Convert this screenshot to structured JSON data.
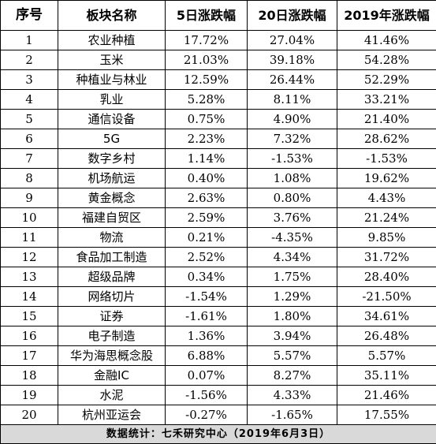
{
  "table": {
    "headers": [
      "序号",
      "板块名称",
      "5日涨跌幅",
      "20日涨跌幅",
      "2019年涨跌幅"
    ],
    "rows": [
      {
        "index": "1",
        "name": "农业种植",
        "d5": "17.72%",
        "d20": "27.04%",
        "y2019": "41.46%"
      },
      {
        "index": "2",
        "name": "玉米",
        "d5": "21.03%",
        "d20": "39.18%",
        "y2019": "54.28%"
      },
      {
        "index": "3",
        "name": "种植业与林业",
        "d5": "12.59%",
        "d20": "26.44%",
        "y2019": "52.29%"
      },
      {
        "index": "4",
        "name": "乳业",
        "d5": "5.28%",
        "d20": "8.11%",
        "y2019": "33.21%"
      },
      {
        "index": "5",
        "name": "通信设备",
        "d5": "0.75%",
        "d20": "4.90%",
        "y2019": "21.40%"
      },
      {
        "index": "6",
        "name": "5G",
        "d5": "2.23%",
        "d20": "7.32%",
        "y2019": "28.62%"
      },
      {
        "index": "7",
        "name": "数字乡村",
        "d5": "1.14%",
        "d20": "-1.53%",
        "y2019": "-1.53%"
      },
      {
        "index": "8",
        "name": "机场航运",
        "d5": "0.40%",
        "d20": "1.08%",
        "y2019": "19.62%"
      },
      {
        "index": "9",
        "name": "黄金概念",
        "d5": "2.63%",
        "d20": "0.80%",
        "y2019": "4.43%"
      },
      {
        "index": "10",
        "name": "福建自贸区",
        "d5": "2.59%",
        "d20": "3.76%",
        "y2019": "21.24%"
      },
      {
        "index": "11",
        "name": "物流",
        "d5": "0.21%",
        "d20": "-4.35%",
        "y2019": "9.85%"
      },
      {
        "index": "12",
        "name": "食品加工制造",
        "d5": "2.52%",
        "d20": "4.34%",
        "y2019": "31.72%"
      },
      {
        "index": "13",
        "name": "超级品牌",
        "d5": "0.34%",
        "d20": "1.75%",
        "y2019": "28.40%"
      },
      {
        "index": "14",
        "name": "网络切片",
        "d5": "-1.54%",
        "d20": "1.29%",
        "y2019": "-21.50%"
      },
      {
        "index": "15",
        "name": "证券",
        "d5": "-1.61%",
        "d20": "1.80%",
        "y2019": "34.61%"
      },
      {
        "index": "16",
        "name": "电子制造",
        "d5": "1.36%",
        "d20": "3.94%",
        "y2019": "26.48%"
      },
      {
        "index": "17",
        "name": "华为海思概念股",
        "d5": "6.88%",
        "d20": "5.57%",
        "y2019": "5.57%"
      },
      {
        "index": "18",
        "name": "金融IC",
        "d5": "0.07%",
        "d20": "8.27%",
        "y2019": "35.11%"
      },
      {
        "index": "19",
        "name": "水泥",
        "d5": "-1.56%",
        "d20": "4.33%",
        "y2019": "21.46%"
      },
      {
        "index": "20",
        "name": "杭州亚运会",
        "d5": "-0.27%",
        "d20": "-1.65%",
        "y2019": "17.55%"
      }
    ],
    "footer": "数据统计：七禾研究中心（2019年6月3日）"
  },
  "colors": {
    "border": "#000000",
    "footer_bg": "#d9d9d9",
    "text": "#000000"
  }
}
